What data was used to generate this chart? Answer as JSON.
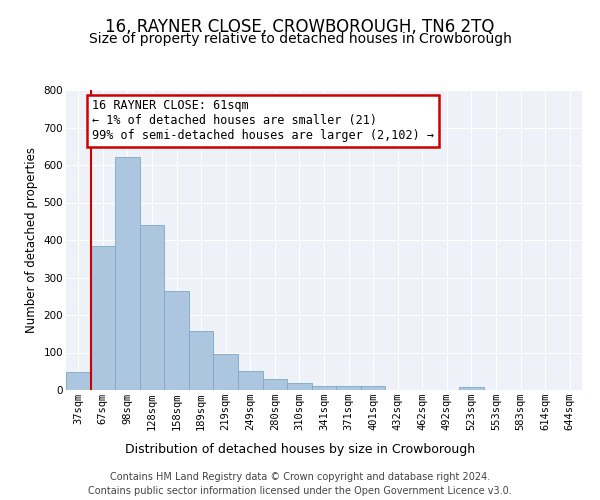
{
  "title": "16, RAYNER CLOSE, CROWBOROUGH, TN6 2TQ",
  "subtitle": "Size of property relative to detached houses in Crowborough",
  "xlabel": "Distribution of detached houses by size in Crowborough",
  "ylabel": "Number of detached properties",
  "categories": [
    "37sqm",
    "67sqm",
    "98sqm",
    "128sqm",
    "158sqm",
    "189sqm",
    "219sqm",
    "249sqm",
    "280sqm",
    "310sqm",
    "341sqm",
    "371sqm",
    "401sqm",
    "432sqm",
    "462sqm",
    "492sqm",
    "523sqm",
    "553sqm",
    "583sqm",
    "614sqm",
    "644sqm"
  ],
  "values": [
    47,
    383,
    622,
    441,
    265,
    157,
    95,
    52,
    30,
    18,
    10,
    12,
    12,
    0,
    0,
    0,
    8,
    0,
    0,
    0,
    0
  ],
  "bar_color": "#adc6e0",
  "bar_edge_color": "#7aaac8",
  "annotation_text_line1": "16 RAYNER CLOSE: 61sqm",
  "annotation_text_line2": "← 1% of detached houses are smaller (21)",
  "annotation_text_line3": "99% of semi-detached houses are larger (2,102) →",
  "annotation_box_facecolor": "#ffffff",
  "annotation_box_edgecolor": "#cc0000",
  "red_line_color": "#cc0000",
  "ylim": [
    0,
    800
  ],
  "yticks": [
    0,
    100,
    200,
    300,
    400,
    500,
    600,
    700,
    800
  ],
  "background_color": "#eef2f8",
  "grid_color": "#ffffff",
  "footer_line1": "Contains HM Land Registry data © Crown copyright and database right 2024.",
  "footer_line2": "Contains public sector information licensed under the Open Government Licence v3.0.",
  "title_fontsize": 12,
  "subtitle_fontsize": 10,
  "xlabel_fontsize": 9,
  "ylabel_fontsize": 8.5,
  "tick_fontsize": 7.5,
  "annotation_fontsize": 8.5,
  "footer_fontsize": 7
}
